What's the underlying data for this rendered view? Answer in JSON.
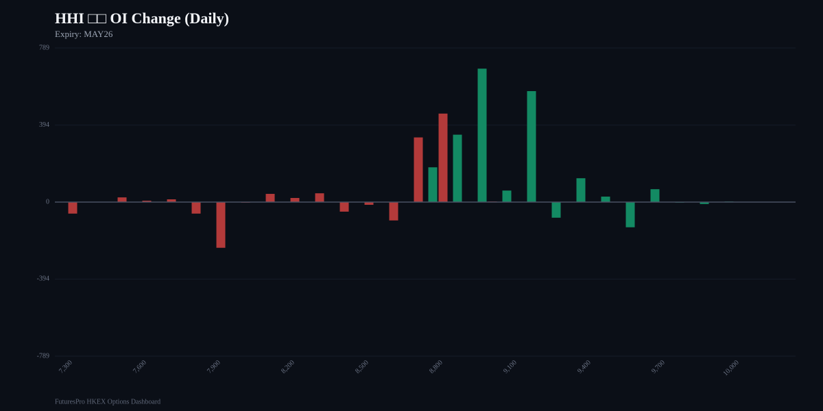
{
  "chart_data": {
    "type": "bar",
    "title": "HHI □□ OI Change (Daily)",
    "subtitle": "Expiry: MAY26",
    "footer": "FuturesPro HKEX Options Dashboard",
    "categories": [
      "7,300",
      null,
      null,
      "7,600",
      null,
      null,
      "7,900",
      null,
      null,
      "8,200",
      null,
      null,
      "8,500",
      null,
      null,
      "8,800",
      null,
      null,
      "9,100",
      null,
      null,
      "9,400",
      null,
      null,
      "9,700",
      null,
      null,
      "10,000",
      null,
      null
    ],
    "series": [
      {
        "color": "#b33a3a",
        "values": [
          -59,
          0,
          24,
          7,
          14,
          -59,
          -234,
          -3,
          42,
          21,
          45,
          -49,
          -14,
          -94,
          331,
          453,
          0,
          3,
          0,
          0,
          0,
          0,
          0,
          0,
          0,
          0,
          0,
          0,
          0,
          0
        ]
      },
      {
        "color": "#138a63",
        "values": [
          0,
          0,
          0,
          0,
          0,
          0,
          0,
          0,
          0,
          0,
          0,
          0,
          0,
          0,
          178,
          345,
          683,
          59,
          568,
          -80,
          122,
          28,
          -129,
          66,
          -3,
          -10,
          3,
          0,
          0,
          0
        ]
      }
    ],
    "ylim": [
      -789,
      789
    ],
    "yticks": [
      -789,
      -394,
      0,
      394,
      789
    ],
    "grid": true
  }
}
